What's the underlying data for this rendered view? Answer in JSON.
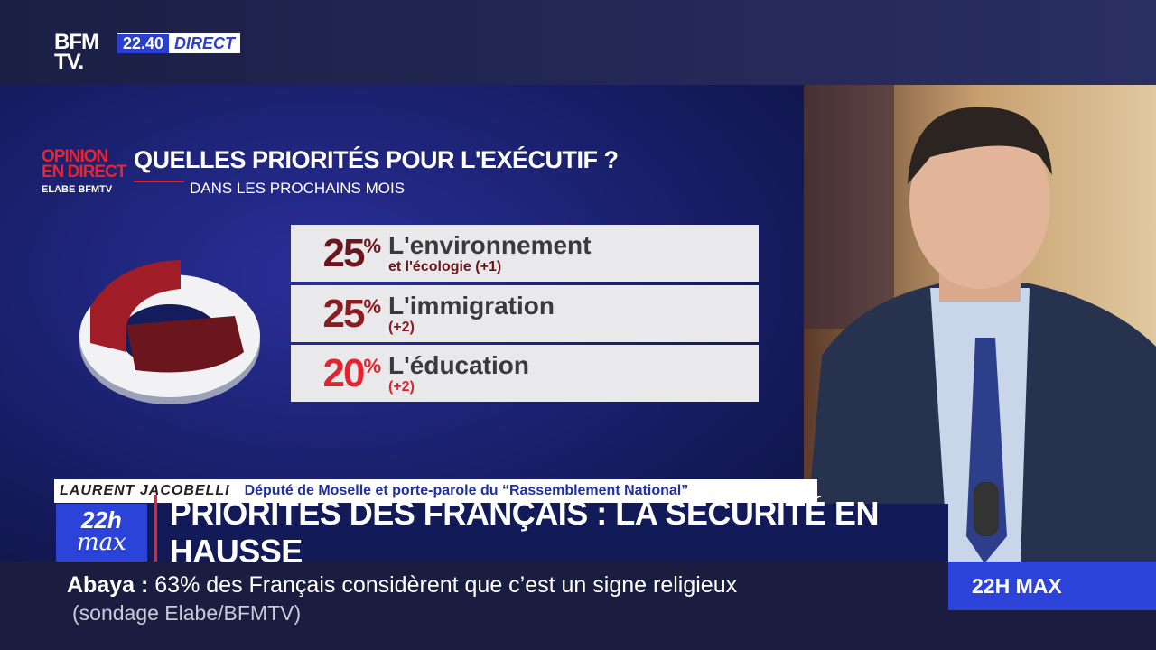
{
  "header": {
    "logo_top": "BFM",
    "logo_bottom": "TV.",
    "time": "22.40",
    "live": "DIRECT"
  },
  "poll": {
    "brand": [
      "OPINION",
      "EN DIRECT"
    ],
    "source": [
      "ELABE",
      "BFMTV"
    ],
    "title": "QUELLES PRIORITÉS POUR L'EXÉCUTIF ?",
    "subtitle": "DANS LES PROCHAINS MOIS",
    "items": [
      {
        "value": "25",
        "unit": "%",
        "label": "L'environnement",
        "detail": "et l'écologie (+1)"
      },
      {
        "value": "25",
        "unit": "%",
        "label": "L'immigration",
        "detail": "(+2)"
      },
      {
        "value": "20",
        "unit": "%",
        "label": "L'éducation",
        "detail": "(+2)"
      }
    ]
  },
  "lower_third": {
    "name": "LAURENT JACOBELLI",
    "role": "Député de Moselle et porte-parole du “Rassemblement National”",
    "show_top": "22h",
    "show_bottom": "max",
    "headline": "PRIORITÉS DES FRANÇAIS : LA SÉCURITÉ EN HAUSSE"
  },
  "ticker": {
    "topic": "Abaya",
    "separator": ":",
    "text": "63% des Français considèrent que c’est un signe religieux",
    "source": "(sondage Elabe/BFMTV)",
    "program": "22H MAX"
  }
}
